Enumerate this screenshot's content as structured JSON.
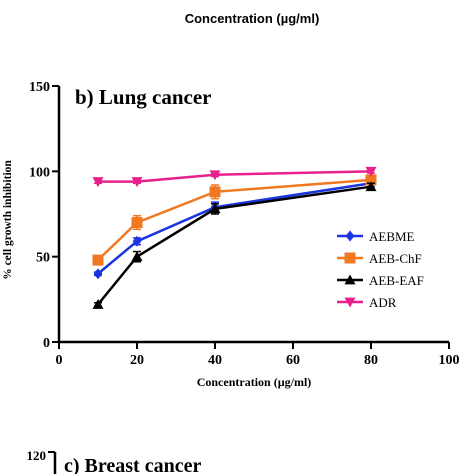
{
  "top_fragment": {
    "xlabel": "Concentration (µg/ml)"
  },
  "chart_data": {
    "type": "line",
    "title": "b) Lung cancer",
    "xlabel": "Concentration (µg/ml)",
    "ylabel": "% cell growth inhibition",
    "xlim": [
      0,
      100
    ],
    "ylim": [
      0,
      150
    ],
    "xticks": [
      0,
      20,
      40,
      60,
      80,
      100
    ],
    "yticks": [
      0,
      50,
      100,
      150
    ],
    "grid": false,
    "legend_position": "right",
    "x": [
      10,
      20,
      40,
      80
    ],
    "series": [
      {
        "name": "AEBME",
        "values": [
          40,
          59,
          79,
          93
        ],
        "errors": [
          1,
          2,
          3,
          2
        ],
        "color": "#1a35e0",
        "marker": "diamond"
      },
      {
        "name": "AEB-ChF",
        "values": [
          48,
          70,
          88,
          95
        ],
        "errors": [
          1,
          4,
          4,
          2
        ],
        "color": "#f07820",
        "marker": "square"
      },
      {
        "name": "AEB-EAF",
        "values": [
          22,
          50,
          78,
          91
        ],
        "errors": [
          1,
          3,
          3,
          2
        ],
        "color": "#000000",
        "marker": "triangle-up"
      },
      {
        "name": "ADR",
        "values": [
          94,
          94,
          98,
          100
        ],
        "errors": [
          1,
          1,
          1,
          1
        ],
        "color": "#e8208c",
        "marker": "triangle-down"
      }
    ]
  },
  "bottom_fragment": {
    "title": "c) Breast cancer",
    "ytick_top": "120"
  }
}
